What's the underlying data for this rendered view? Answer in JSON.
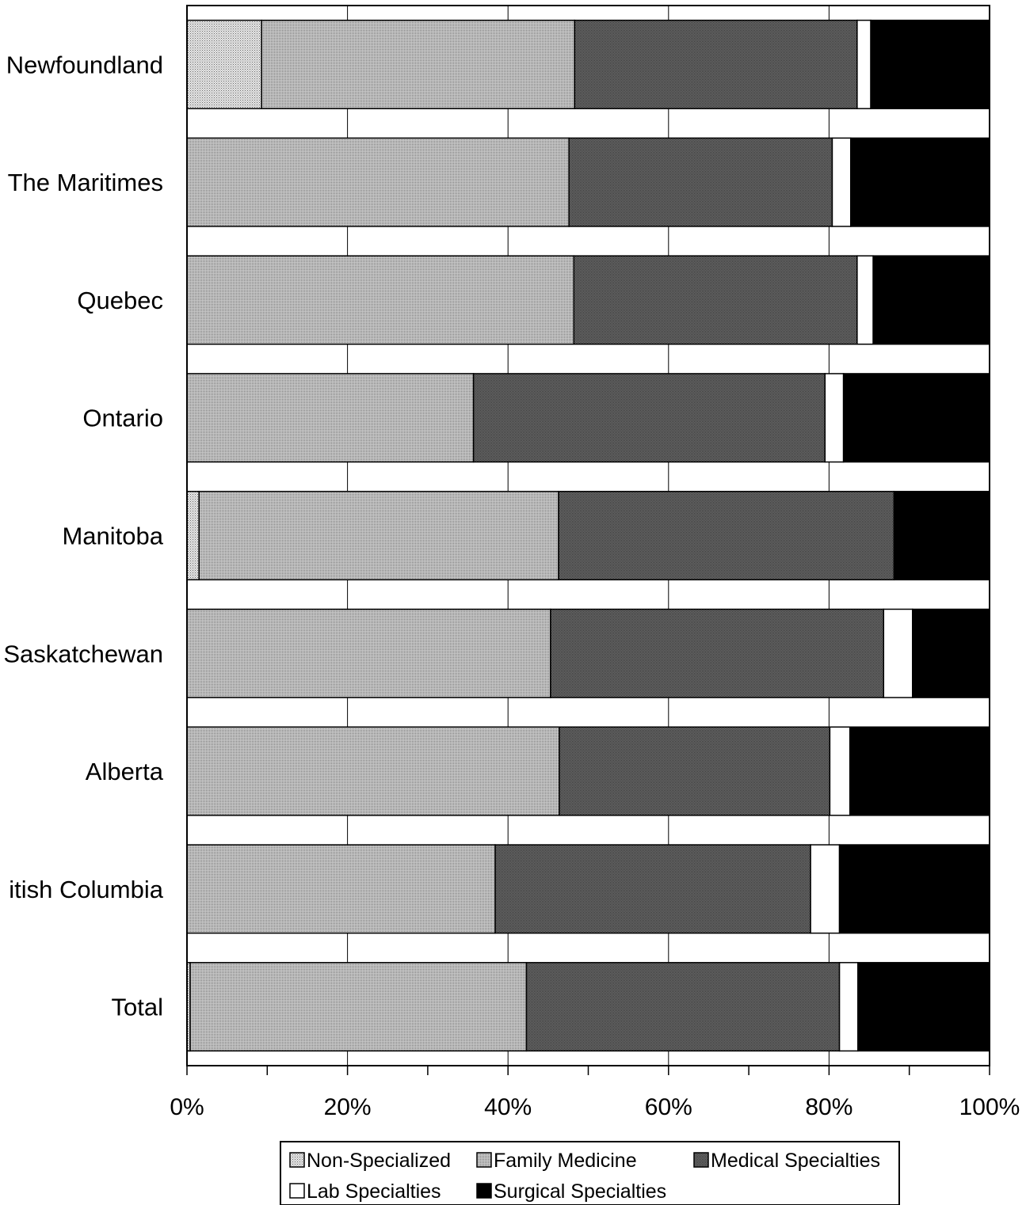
{
  "chart_data": {
    "type": "bar",
    "orientation": "horizontal",
    "stacked": true,
    "normalized": true,
    "categories": [
      "Newfoundland",
      "The Maritimes",
      "Quebec",
      "Ontario",
      "Manitoba",
      "Saskatchewan",
      "Alberta",
      "itish Columbia",
      "Total"
    ],
    "series": [
      {
        "name": "Non-Specialized",
        "values": [
          9.3,
          0.0,
          0.0,
          0.0,
          1.5,
          0.0,
          0.0,
          0.0,
          0.4
        ]
      },
      {
        "name": "Family Medicine",
        "values": [
          39.0,
          47.6,
          48.2,
          35.7,
          44.8,
          45.3,
          46.4,
          38.4,
          41.9
        ]
      },
      {
        "name": "Medical Specialties",
        "values": [
          35.2,
          32.8,
          35.3,
          43.8,
          41.8,
          41.5,
          33.7,
          39.3,
          39.0
        ]
      },
      {
        "name": "Lab Specialties",
        "values": [
          1.7,
          2.3,
          2.0,
          2.3,
          0.0,
          3.6,
          2.5,
          3.6,
          2.3
        ]
      },
      {
        "name": "Surgical Specialties",
        "values": [
          14.8,
          17.3,
          14.5,
          18.2,
          11.9,
          9.6,
          17.4,
          18.7,
          16.4
        ]
      }
    ],
    "xticks": [
      "0%",
      "20%",
      "40%",
      "60%",
      "80%",
      "100%"
    ],
    "xlim": [
      0,
      100
    ],
    "grid": "vertical",
    "legend": "bottom",
    "colors": {
      "Non-Specialized": "#d2d2d2",
      "Family Medicine": "#b9b9b9",
      "Medical Specialties": "#5e5e5e",
      "Lab Specialties": "#ffffff",
      "Surgical Specialties": "#000000"
    }
  }
}
